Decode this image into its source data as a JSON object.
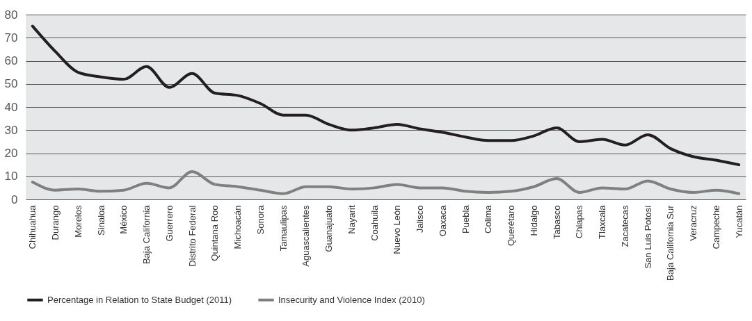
{
  "chart_data": {
    "type": "line",
    "categories": [
      "Chihuahua",
      "Durango",
      "Morelos",
      "Sinaloa",
      "México",
      "Baja California",
      "Guerrero",
      "Distrito Federal",
      "Quintana Roo",
      "Michoacán",
      "Sonora",
      "Tamaulipas",
      "Aguascalientes",
      "Guanajuato",
      "Nayarit",
      "Coahuila",
      "Nuevo León",
      "Jalisco",
      "Oaxaca",
      "Puebla",
      "Colima",
      "Querétaro",
      "Hidalgo",
      "Tabasco",
      "Chiapas",
      "Tlaxcala",
      "Zacatecas",
      "San Luis Potosí",
      "Baja California Sur",
      "Veracruz",
      "Campeche",
      "Yucatán"
    ],
    "series": [
      {
        "name": "Percentage in Relation to State Budget (2011)",
        "color": "#231f20",
        "values": [
          75,
          64,
          55,
          53,
          52,
          57.5,
          48.5,
          54.5,
          46,
          45,
          41.5,
          36.5,
          36.5,
          32.5,
          30,
          31,
          32.5,
          30.5,
          29,
          27,
          25.5,
          25.5,
          27.5,
          31,
          25,
          26,
          23.5,
          28,
          22,
          18.5,
          17,
          15
        ]
      },
      {
        "name": "Insecurity and Violence Index (2010)",
        "color": "#808080",
        "values": [
          7.5,
          4,
          4.5,
          3.5,
          4,
          7,
          5,
          12,
          6.5,
          5.5,
          4,
          2.5,
          5.5,
          5.5,
          4.5,
          5,
          6.5,
          5,
          5,
          3.5,
          3,
          3.5,
          5.5,
          9,
          3,
          5,
          4.5,
          8,
          4.5,
          3,
          4,
          2.5
        ]
      }
    ],
    "ylim": [
      0,
      80
    ],
    "yticks": [
      0,
      10,
      20,
      30,
      40,
      50,
      60,
      70,
      80
    ],
    "grid": "y",
    "legend": "bottom left",
    "marker": "none",
    "line_style": "solid"
  }
}
